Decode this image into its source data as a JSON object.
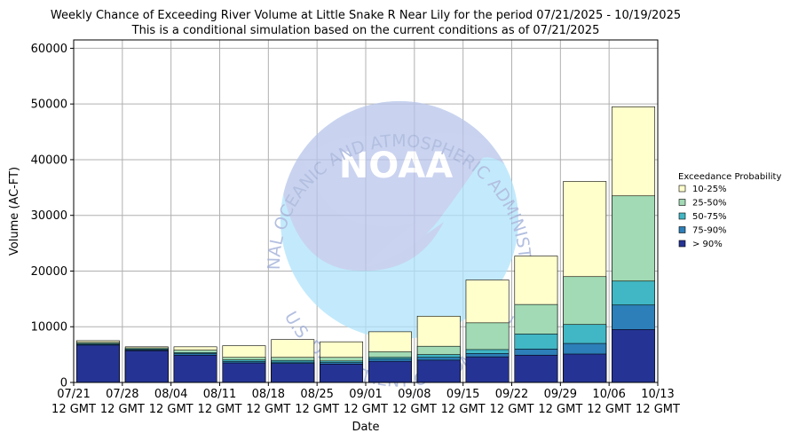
{
  "chart_data": {
    "type": "bar",
    "stacked": true,
    "title": "Weekly Chance of Exceeding River Volume at Little Snake R Near Lily for the period 07/21/2025 - 10/19/2025",
    "subtitle": "This is a conditional simulation based on the current conditions as of 07/21/2025",
    "xlabel": "Date",
    "ylabel": "Volume (AC-FT)",
    "ylim": [
      0,
      61500
    ],
    "yticks": [
      "0",
      "10000",
      "20000",
      "30000",
      "40000",
      "50000",
      "60000"
    ],
    "ytick_values": [
      0,
      10000,
      20000,
      30000,
      40000,
      50000,
      60000
    ],
    "xticks": [
      [
        "07/21",
        "12 GMT"
      ],
      [
        "07/28",
        "12 GMT"
      ],
      [
        "08/04",
        "12 GMT"
      ],
      [
        "08/11",
        "12 GMT"
      ],
      [
        "08/18",
        "12 GMT"
      ],
      [
        "08/25",
        "12 GMT"
      ],
      [
        "09/01",
        "12 GMT"
      ],
      [
        "09/08",
        "12 GMT"
      ],
      [
        "09/15",
        "12 GMT"
      ],
      [
        "09/22",
        "12 GMT"
      ],
      [
        "09/29",
        "12 GMT"
      ],
      [
        "10/06",
        "12 GMT"
      ],
      [
        "10/13",
        "12 GMT"
      ]
    ],
    "grid": true,
    "legend_title": "Exceedance Probability",
    "legend_position": "right",
    "series": [
      {
        "name": "> 90%",
        "color": "#253494",
        "tops": [
          6700,
          5700,
          4900,
          3500,
          3400,
          3300,
          3800,
          4000,
          4600,
          4900,
          5100,
          9500
        ]
      },
      {
        "name": "75-90%",
        "color": "#2c7fb8",
        "tops": [
          6850,
          5850,
          5150,
          3750,
          3650,
          3550,
          4200,
          4500,
          5200,
          6000,
          7000,
          13900
        ]
      },
      {
        "name": "50-75%",
        "color": "#41b6c4",
        "tops": [
          7000,
          6000,
          5350,
          4050,
          3950,
          3850,
          4500,
          5000,
          5900,
          8700,
          10400,
          18200
        ]
      },
      {
        "name": "25-50%",
        "color": "#a1dab4",
        "tops": [
          7200,
          6200,
          5800,
          4500,
          4500,
          4500,
          5500,
          6500,
          10700,
          14000,
          19000,
          33500
        ]
      },
      {
        "name": "10-25%",
        "color": "#ffffcc",
        "tops": [
          7500,
          6400,
          6400,
          6600,
          7700,
          7300,
          9100,
          11900,
          18400,
          22700,
          36100,
          49500
        ]
      }
    ],
    "legend_order": [
      "10-25%",
      "25-50%",
      "50-75%",
      "75-90%",
      "> 90%"
    ]
  },
  "watermark": {
    "logo_text": "NOAA",
    "ring_text_top": "NATIONAL OCEANIC AND ATMOSPHERIC ADMINISTRATION",
    "ring_text_bottom": "U.S. DEPARTMENT OF COMMERCE"
  }
}
